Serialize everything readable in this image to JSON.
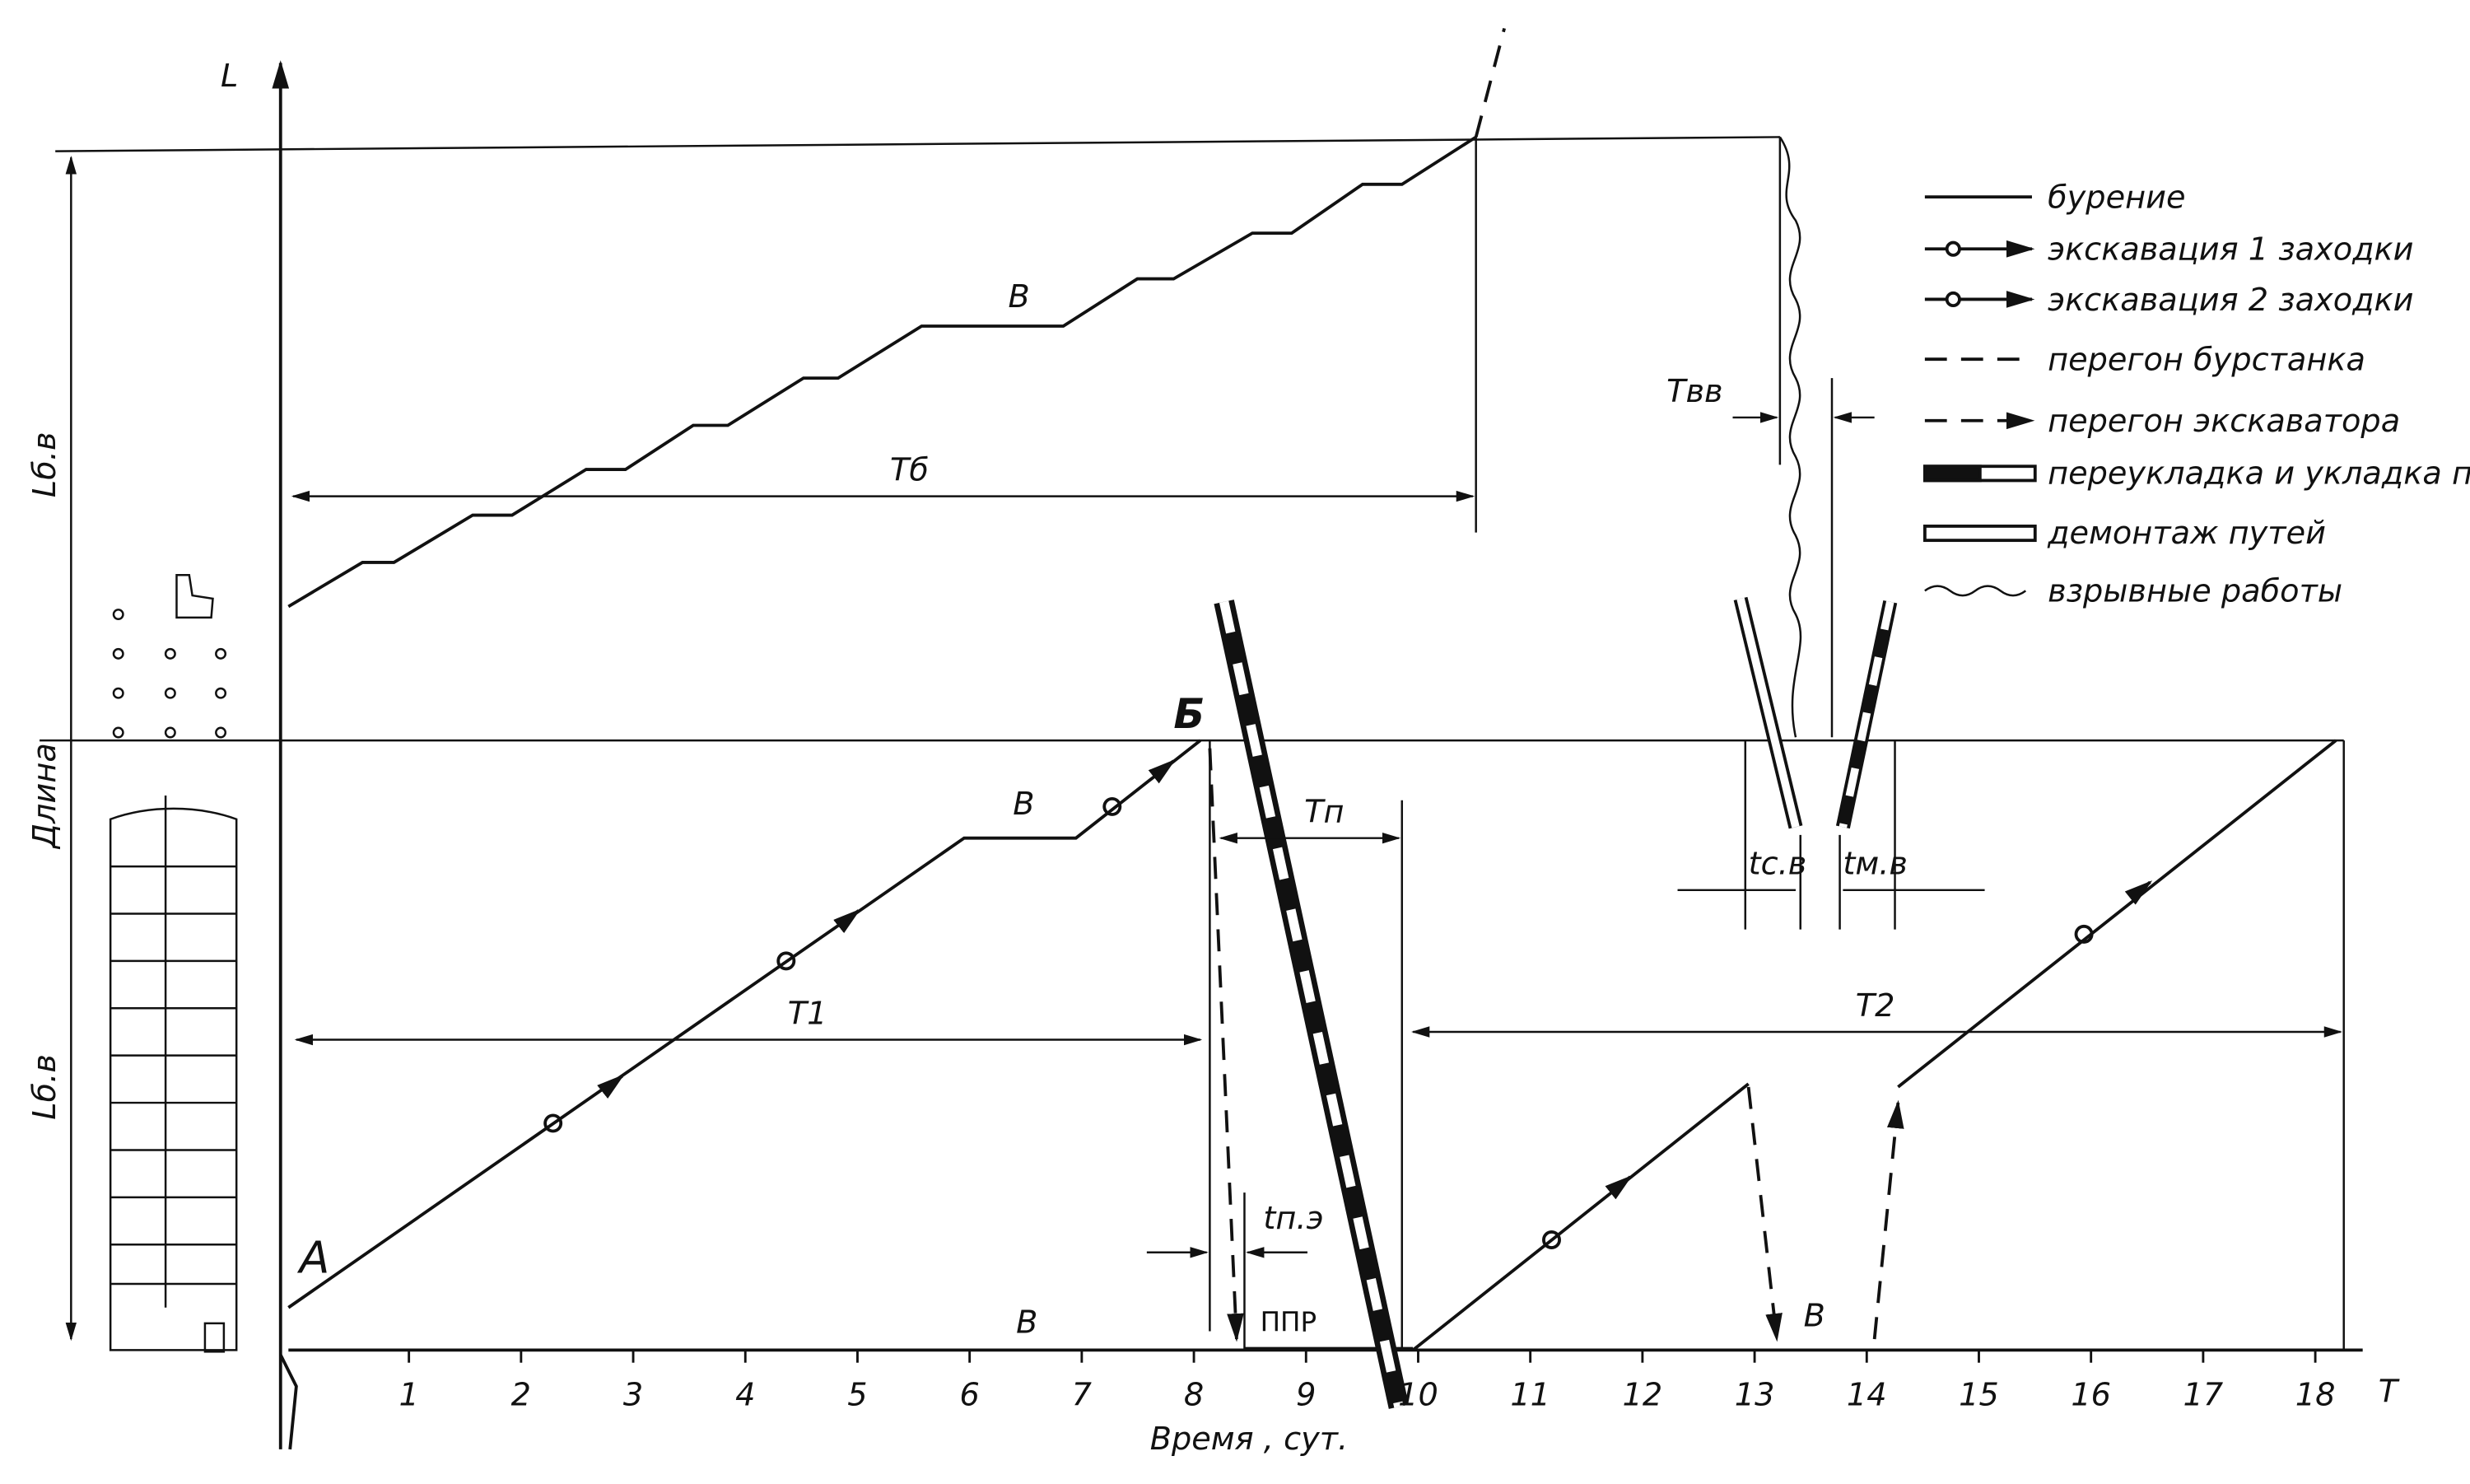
{
  "axes": {
    "y_label": "L",
    "x_label": "T",
    "x_title": "Время , сут.",
    "y_title": "Длина",
    "x_ticks": [
      1,
      2,
      3,
      4,
      5,
      6,
      7,
      8,
      9,
      10,
      11,
      12,
      13,
      14,
      15,
      16,
      17,
      18
    ]
  },
  "dimensions": {
    "l_upper": "Lб.в",
    "l_lower": "Lб.в",
    "t_drill": "Tб",
    "t1": "T1",
    "t2": "T2",
    "tp": "Tп",
    "tvv": "Tвв",
    "tpe": "tп.э",
    "tsv": "tс.в",
    "tmv": "tм.в"
  },
  "points": {
    "a": "A",
    "b": "Б",
    "ppr": "ППР",
    "v1": "В",
    "v2": "В",
    "v3": "В",
    "v4": "В"
  },
  "legend": [
    "бурение",
    "экскавация 1 заходки",
    "экскавация 2 заходки",
    "перегон бурстанка",
    "перегон экскаватора",
    "переукладка и укладка путей",
    "демонтаж путей",
    "взрывные работы"
  ]
}
